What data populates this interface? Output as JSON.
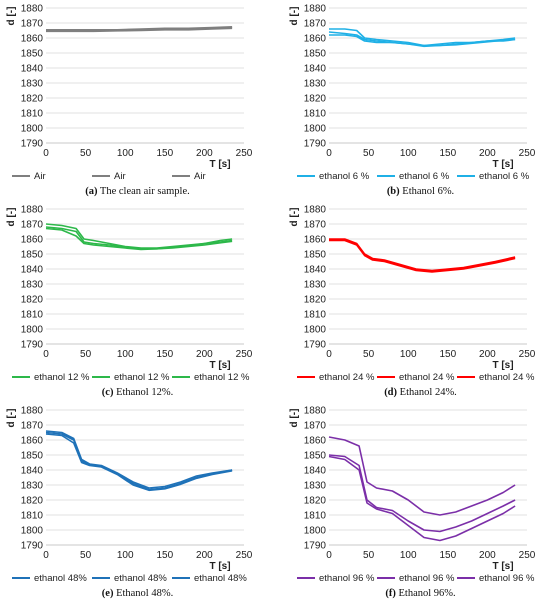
{
  "chart_data": [
    {
      "id": "a",
      "type": "line",
      "ylabel": "d [-]",
      "xlabel": "T [s]",
      "xlim": [
        0,
        250
      ],
      "ylim": [
        1790,
        1880
      ],
      "xticks": [
        0,
        50,
        100,
        150,
        200,
        250
      ],
      "yticks": [
        1790,
        1800,
        1810,
        1820,
        1830,
        1840,
        1850,
        1860,
        1870,
        1880
      ],
      "color": "#7f7f7f",
      "legend": [
        "Air",
        "Air",
        "Air"
      ],
      "caption_label": "(a)",
      "caption_text": " The clean air sample.",
      "series": [
        {
          "x": [
            0,
            30,
            60,
            90,
            120,
            150,
            180,
            210,
            235
          ],
          "y": [
            1865,
            1865,
            1865,
            1865,
            1865.5,
            1866,
            1866,
            1866.5,
            1867
          ]
        },
        {
          "x": [
            0,
            30,
            60,
            90,
            120,
            150,
            180,
            210,
            235
          ],
          "y": [
            1865.5,
            1865.5,
            1865.5,
            1865.5,
            1866,
            1866.5,
            1866.5,
            1867,
            1867.5
          ]
        },
        {
          "x": [
            0,
            30,
            60,
            90,
            120,
            150,
            180,
            210,
            235
          ],
          "y": [
            1864.5,
            1864.5,
            1864.5,
            1864.8,
            1865,
            1865.5,
            1865.5,
            1866,
            1866.5
          ]
        }
      ]
    },
    {
      "id": "b",
      "type": "line",
      "ylabel": "d [-]",
      "xlabel": "T [s]",
      "xlim": [
        0,
        250
      ],
      "ylim": [
        1790,
        1880
      ],
      "xticks": [
        0,
        50,
        100,
        150,
        200,
        250
      ],
      "yticks": [
        1790,
        1800,
        1810,
        1820,
        1830,
        1840,
        1850,
        1860,
        1870,
        1880
      ],
      "color": "#1fb0e6",
      "legend": [
        "ethanol 6 %",
        "ethanol 6 %",
        "ethanol 6 %"
      ],
      "caption_label": "(b)",
      "caption_text": " Ethanol 6%.",
      "series": [
        {
          "x": [
            0,
            20,
            35,
            45,
            60,
            80,
            100,
            120,
            140,
            160,
            180,
            200,
            220,
            235
          ],
          "y": [
            1866,
            1866,
            1865,
            1860,
            1859,
            1858,
            1857,
            1855,
            1856,
            1857,
            1857,
            1858,
            1858,
            1859
          ]
        },
        {
          "x": [
            0,
            20,
            35,
            45,
            60,
            80,
            100,
            120,
            140,
            160,
            180,
            200,
            220,
            235
          ],
          "y": [
            1864,
            1863,
            1862,
            1859,
            1858,
            1857,
            1856,
            1855,
            1855,
            1856,
            1857,
            1858,
            1859,
            1860
          ]
        },
        {
          "x": [
            0,
            20,
            35,
            45,
            60,
            80,
            100,
            120,
            140,
            160,
            180,
            200,
            220,
            235
          ],
          "y": [
            1862,
            1862,
            1861,
            1858,
            1857,
            1857,
            1856,
            1854.5,
            1855,
            1855.5,
            1856.5,
            1857.5,
            1858.5,
            1859
          ]
        }
      ]
    },
    {
      "id": "c",
      "type": "line",
      "ylabel": "d [-]",
      "xlabel": "T [s]",
      "xlim": [
        0,
        250
      ],
      "ylim": [
        1790,
        1880
      ],
      "xticks": [
        0,
        50,
        100,
        150,
        200,
        250
      ],
      "yticks": [
        1790,
        1800,
        1810,
        1820,
        1830,
        1840,
        1850,
        1860,
        1870,
        1880
      ],
      "color": "#2db84a",
      "legend": [
        "ethanol 12 %",
        "ethanol 12 %",
        "ethanol 12 %"
      ],
      "caption_label": "(c)",
      "caption_text": " Ethanol 12%.",
      "series": [
        {
          "x": [
            0,
            20,
            38,
            48,
            60,
            80,
            100,
            120,
            140,
            160,
            180,
            200,
            220,
            235
          ],
          "y": [
            1870,
            1869,
            1867,
            1860,
            1859,
            1857,
            1855,
            1854,
            1854,
            1855,
            1856,
            1857,
            1859,
            1860
          ]
        },
        {
          "x": [
            0,
            20,
            38,
            48,
            60,
            80,
            100,
            120,
            140,
            160,
            180,
            200,
            220,
            235
          ],
          "y": [
            1868,
            1867,
            1865,
            1858,
            1857,
            1856,
            1854.5,
            1853.5,
            1853.5,
            1854.5,
            1855.5,
            1857,
            1858,
            1859
          ]
        },
        {
          "x": [
            0,
            20,
            38,
            48,
            60,
            80,
            100,
            120,
            140,
            160,
            180,
            200,
            220,
            235
          ],
          "y": [
            1867,
            1866,
            1862,
            1857,
            1856,
            1855,
            1854,
            1853,
            1853.5,
            1854,
            1855,
            1856,
            1857.5,
            1858.5
          ]
        }
      ]
    },
    {
      "id": "d",
      "type": "line",
      "ylabel": "d [-]",
      "xlabel": "T [s]",
      "xlim": [
        0,
        250
      ],
      "ylim": [
        1790,
        1880
      ],
      "xticks": [
        0,
        50,
        100,
        150,
        200,
        250
      ],
      "yticks": [
        1790,
        1800,
        1810,
        1820,
        1830,
        1840,
        1850,
        1860,
        1870,
        1880
      ],
      "color": "#ff0000",
      "legend": [
        "ethanol 24 %",
        "ethanol 24 %",
        "ethanol 24 %"
      ],
      "caption_label": "(d)",
      "caption_text": " Ethanol 24%.",
      "series": [
        {
          "x": [
            0,
            20,
            35,
            45,
            55,
            70,
            90,
            110,
            130,
            150,
            170,
            190,
            210,
            235
          ],
          "y": [
            1860,
            1860,
            1857,
            1850,
            1847,
            1846,
            1843,
            1840,
            1839,
            1840,
            1841,
            1843,
            1845,
            1848
          ]
        },
        {
          "x": [
            0,
            20,
            35,
            45,
            55,
            70,
            90,
            110,
            130,
            150,
            170,
            190,
            210,
            235
          ],
          "y": [
            1859.5,
            1859.5,
            1856.5,
            1849.5,
            1846.5,
            1845.5,
            1842.5,
            1839.5,
            1838.5,
            1839.5,
            1840.5,
            1842.5,
            1844.5,
            1847.5
          ]
        },
        {
          "x": [
            0,
            20,
            35,
            45,
            55,
            70,
            90,
            110,
            130,
            150,
            170,
            190,
            210,
            235
          ],
          "y": [
            1859,
            1859,
            1856,
            1849,
            1846,
            1845,
            1842,
            1839,
            1838,
            1839,
            1840,
            1842,
            1844,
            1847
          ]
        }
      ]
    },
    {
      "id": "e",
      "type": "line",
      "ylabel": "d [-]",
      "xlabel": "T [s]",
      "xlim": [
        0,
        250
      ],
      "ylim": [
        1790,
        1880
      ],
      "xticks": [
        0,
        50,
        100,
        150,
        200,
        250
      ],
      "yticks": [
        1790,
        1800,
        1810,
        1820,
        1830,
        1840,
        1850,
        1860,
        1870,
        1880
      ],
      "color": "#1f72b8",
      "legend": [
        "ethanol 48%",
        "ethanol 48%",
        "ethanol 48%"
      ],
      "caption_label": "(e)",
      "caption_text": " Ethanol 48%.",
      "series": [
        {
          "x": [
            0,
            20,
            35,
            45,
            55,
            70,
            90,
            110,
            130,
            150,
            170,
            190,
            210,
            235
          ],
          "y": [
            1866,
            1865,
            1861,
            1847,
            1844,
            1843,
            1838,
            1832,
            1828,
            1829,
            1832,
            1836,
            1838,
            1840
          ]
        },
        {
          "x": [
            0,
            20,
            35,
            45,
            55,
            70,
            90,
            110,
            130,
            150,
            170,
            190,
            210,
            235
          ],
          "y": [
            1865,
            1864,
            1860,
            1846,
            1843.5,
            1842.5,
            1837.5,
            1831,
            1827,
            1828,
            1831,
            1835,
            1837.5,
            1840
          ]
        },
        {
          "x": [
            0,
            20,
            35,
            45,
            55,
            70,
            90,
            110,
            130,
            150,
            170,
            190,
            210,
            235
          ],
          "y": [
            1864,
            1863,
            1858,
            1845,
            1843,
            1842,
            1837,
            1830,
            1826.5,
            1827.5,
            1830.5,
            1834.5,
            1837,
            1839.5
          ]
        }
      ]
    },
    {
      "id": "f",
      "type": "line",
      "ylabel": "d [-]",
      "xlabel": "T [s]",
      "xlim": [
        0,
        250
      ],
      "ylim": [
        1790,
        1880
      ],
      "xticks": [
        0,
        50,
        100,
        150,
        200,
        250
      ],
      "yticks": [
        1790,
        1800,
        1810,
        1820,
        1830,
        1840,
        1850,
        1860,
        1870,
        1880
      ],
      "color": "#7b2fa8",
      "legend": [
        "ethanol 96 %",
        "ethanol 96 %",
        "ethanol 96 %"
      ],
      "caption_label": "(f)",
      "caption_text": " Ethanol 96%.",
      "series": [
        {
          "x": [
            0,
            20,
            38,
            48,
            60,
            80,
            100,
            120,
            140,
            160,
            180,
            200,
            220,
            235
          ],
          "y": [
            1862,
            1860,
            1856,
            1832,
            1828,
            1826,
            1820,
            1812,
            1810,
            1812,
            1816,
            1820,
            1825,
            1830
          ]
        },
        {
          "x": [
            0,
            20,
            38,
            48,
            60,
            80,
            100,
            120,
            140,
            160,
            180,
            200,
            220,
            235
          ],
          "y": [
            1850,
            1849,
            1843,
            1820,
            1815,
            1813,
            1806,
            1800,
            1799,
            1802,
            1806,
            1811,
            1816,
            1820
          ]
        },
        {
          "x": [
            0,
            20,
            38,
            48,
            60,
            80,
            100,
            120,
            140,
            160,
            180,
            200,
            220,
            235
          ],
          "y": [
            1849,
            1847,
            1840,
            1818,
            1814,
            1811,
            1803,
            1795,
            1793,
            1796,
            1801,
            1806,
            1811,
            1816
          ]
        }
      ]
    }
  ]
}
